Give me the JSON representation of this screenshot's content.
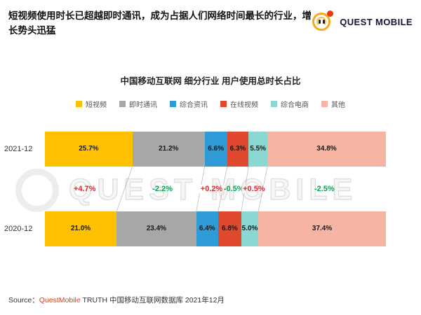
{
  "header": {
    "headline": "短视频使用时长已超越即时通讯，成为占据人们网络时间最长的行业，增长势头迅猛",
    "logo_text": "QUEST MOBILE"
  },
  "watermark": "QUEST MOBILE",
  "chart_data": {
    "type": "bar",
    "variant": "horizontal-stacked-comparison",
    "title": "中国移动互联网 细分行业 用户使用总时长占比",
    "unit": "%",
    "legend_position": "top",
    "categories": [
      "2021-12",
      "2020-12"
    ],
    "series": [
      {
        "name": "短视频",
        "values": [
          25.7,
          21.0
        ],
        "color": "#FFC000"
      },
      {
        "name": "即时通讯",
        "values": [
          21.2,
          23.4
        ],
        "color": "#A7A7A7"
      },
      {
        "name": "综合资讯",
        "values": [
          6.6,
          6.4
        ],
        "color": "#2E9BD6"
      },
      {
        "name": "在线视频",
        "values": [
          6.3,
          6.8
        ],
        "color": "#E1492F"
      },
      {
        "name": "综合电商",
        "values": [
          5.5,
          5.0
        ],
        "color": "#8BD7D2"
      },
      {
        "name": "其他",
        "values": [
          34.8,
          37.4
        ],
        "color": "#F6B4A2"
      }
    ],
    "changes": [
      {
        "label": "+4.7%",
        "trend": "up"
      },
      {
        "label": "-2.2%",
        "trend": "down"
      },
      {
        "label": "+0.2%",
        "trend": "up"
      },
      {
        "label": "-0.5%",
        "trend": "down"
      },
      {
        "label": "+0.5%",
        "trend": "up"
      },
      {
        "label": "-2.5%",
        "trend": "down"
      }
    ],
    "change_colors": {
      "up": "#E6212A",
      "down": "#00A652"
    }
  },
  "source": {
    "prefix": "Source：",
    "brand": "QuestMobile",
    "rest": " TRUTH 中国移动互联网数据库 2021年12月"
  }
}
